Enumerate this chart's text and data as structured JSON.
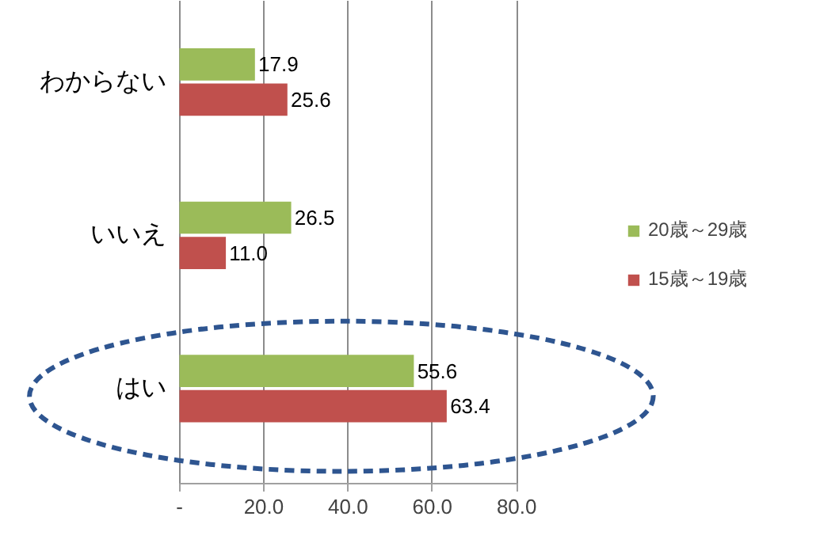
{
  "chart_data": {
    "type": "bar",
    "orientation": "horizontal",
    "categories": [
      "わからない",
      "いいえ",
      "はい"
    ],
    "series": [
      {
        "name": "20歳～29歳",
        "color": "#9bbb59",
        "values": [
          17.9,
          26.5,
          55.6
        ]
      },
      {
        "name": "15歳～19歳",
        "color": "#c0504d",
        "values": [
          25.6,
          11.0,
          63.4
        ]
      }
    ],
    "xlim": [
      0,
      80
    ],
    "xticks": [
      {
        "value": 0,
        "label": "-"
      },
      {
        "value": 20,
        "label": "20.0"
      },
      {
        "value": 40,
        "label": "40.0"
      },
      {
        "value": 60,
        "label": "60.0"
      },
      {
        "value": 80,
        "label": "80.0"
      }
    ],
    "value_labels": [
      [
        "17.9",
        "26.5",
        "55.6"
      ],
      [
        "25.6",
        "11.0",
        "63.4"
      ]
    ],
    "grid": "x",
    "legend": "right"
  }
}
